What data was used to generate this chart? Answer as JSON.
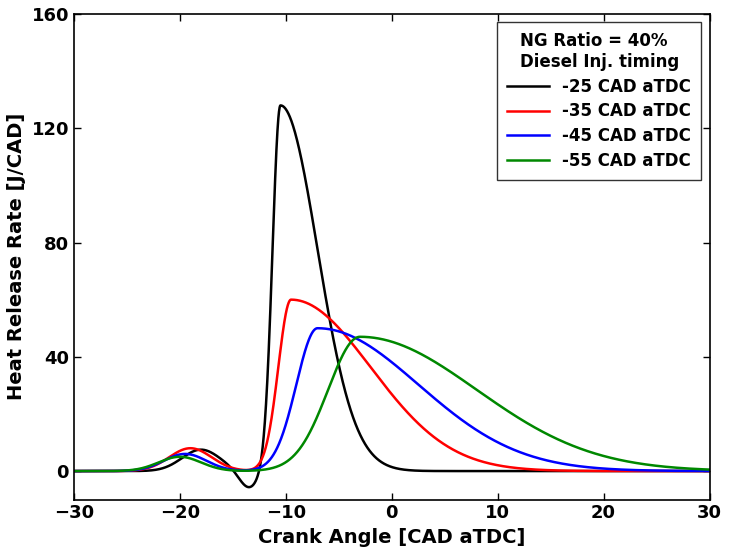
{
  "xlabel": "Crank Angle [CAD aTDC]",
  "ylabel": "Heat Release Rate [J/CAD]",
  "xlim": [
    -30,
    30
  ],
  "ylim": [
    -10,
    160
  ],
  "yticks": [
    0,
    40,
    80,
    120,
    160
  ],
  "xticks": [
    -30,
    -20,
    -10,
    0,
    10,
    20,
    30
  ],
  "legend_title_line1": "NG Ratio = 40%",
  "legend_title_line2": "Diesel Inj. timing",
  "series": [
    {
      "label": "-25 CAD aTDC",
      "color": "#000000"
    },
    {
      "label": "-35 CAD aTDC",
      "color": "#ff0000"
    },
    {
      "label": "-45 CAD aTDC",
      "color": "#0000ff"
    },
    {
      "label": "-55 CAD aTDC",
      "color": "#008800"
    }
  ],
  "figsize": [
    7.29,
    5.54
  ],
  "dpi": 100,
  "linewidth": 1.8,
  "legend_fontsize": 12,
  "axis_label_fontsize": 14,
  "tick_fontsize": 13,
  "background_color": "#ffffff"
}
